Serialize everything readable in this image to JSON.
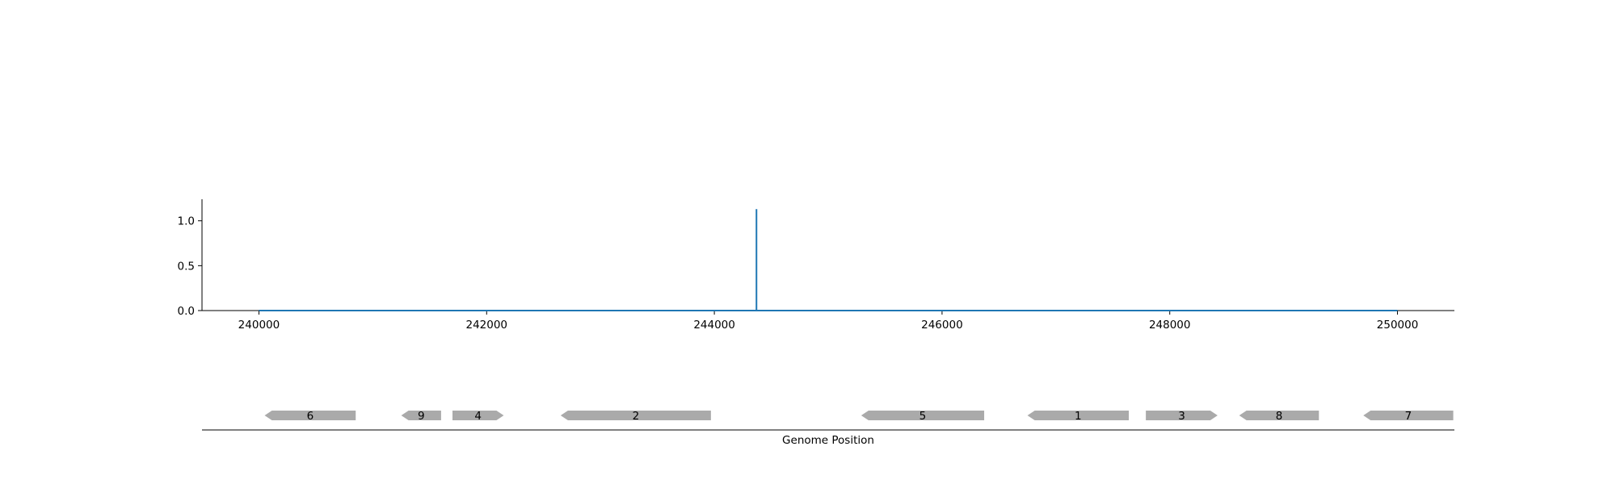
{
  "chart_data": [
    {
      "type": "line",
      "title": "",
      "xlabel": "",
      "ylabel": "",
      "xlim": [
        239500,
        250500
      ],
      "ylim": [
        0,
        1.24
      ],
      "x_ticks": [
        240000,
        242000,
        244000,
        246000,
        248000,
        250000
      ],
      "y_ticks": [
        0.0,
        0.5,
        1.0
      ],
      "x_tick_labels": [
        "240000",
        "242000",
        "244000",
        "246000",
        "248000",
        "250000"
      ],
      "y_tick_labels": [
        "0.0",
        "0.5",
        "1.0"
      ],
      "grid": false,
      "series": [
        {
          "color": "#1f77b4",
          "x": [
            240000,
            244370,
            244370,
            244370,
            244370,
            250000
          ],
          "y": [
            0,
            0,
            1.13,
            1.13,
            0,
            0
          ]
        }
      ]
    },
    {
      "type": "gene-map",
      "xlabel": "Genome Position",
      "xlim": [
        239500,
        250500
      ],
      "color": "#aaaaaa",
      "genes": [
        {
          "label": "6",
          "start": 240050,
          "end": 240850,
          "strand": "-"
        },
        {
          "label": "9",
          "start": 241250,
          "end": 241600,
          "strand": "-"
        },
        {
          "label": "4",
          "start": 241700,
          "end": 242150,
          "strand": "+"
        },
        {
          "label": "2",
          "start": 242650,
          "end": 243970,
          "strand": "-"
        },
        {
          "label": "5",
          "start": 245290,
          "end": 246370,
          "strand": "-"
        },
        {
          "label": "1",
          "start": 246750,
          "end": 247640,
          "strand": "-"
        },
        {
          "label": "3",
          "start": 247790,
          "end": 248420,
          "strand": "+"
        },
        {
          "label": "8",
          "start": 248610,
          "end": 249310,
          "strand": "-"
        },
        {
          "label": "7",
          "start": 249700,
          "end": 250490,
          "strand": "-"
        }
      ]
    }
  ]
}
